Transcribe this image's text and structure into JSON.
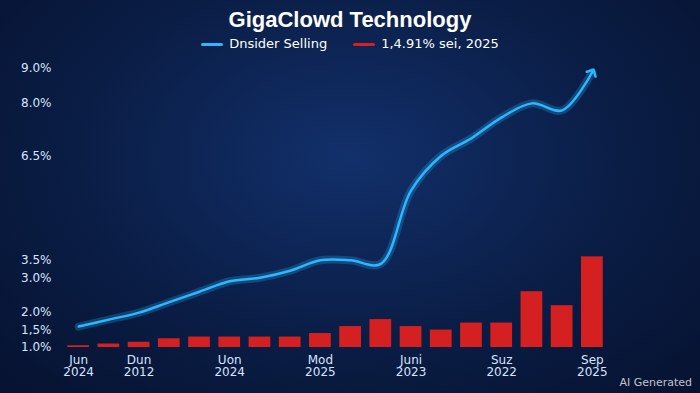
{
  "chart_data": {
    "type": "bar",
    "title": "GigaClowd Technology",
    "annotations": [
      "AI Generated"
    ],
    "categories": [
      "Jun\n2024",
      null,
      "Dun\n2012",
      null,
      null,
      "Uon\n2024",
      null,
      null,
      "Mod\n2025",
      null,
      null,
      "Juni\n2023",
      null,
      null,
      "Suz\n2022",
      null,
      null,
      "Sep\n2025"
    ],
    "series": [
      {
        "name": "Dnsider Selling",
        "type": "line",
        "color": "#2bb8ff",
        "marker": "arrow",
        "values": [
          1.6,
          1.8,
          2.0,
          2.3,
          2.6,
          2.9,
          3.0,
          3.2,
          3.5,
          3.5,
          3.4,
          5.5,
          6.5,
          7.0,
          7.6,
          8.0,
          7.8,
          8.9
        ]
      },
      {
        "name": "1,4.91% sei, 2025",
        "type": "bar",
        "color": "#d42020",
        "values": [
          1.05,
          1.1,
          1.15,
          1.25,
          1.3,
          1.3,
          1.3,
          1.3,
          1.4,
          1.6,
          1.8,
          1.6,
          1.5,
          1.7,
          1.7,
          2.6,
          2.2,
          3.6
        ]
      }
    ],
    "ylim": [
      1.0,
      9.0
    ],
    "yticks": [
      {
        "value": 1.0,
        "label": "1.0%"
      },
      {
        "value": 1.5,
        "label": "1,5%"
      },
      {
        "value": 2.0,
        "label": "2.0%"
      },
      {
        "value": 3.0,
        "label": "3.0%"
      },
      {
        "value": 3.5,
        "label": "3.5%"
      },
      {
        "value": 6.5,
        "label": "6.5%"
      },
      {
        "value": 8.0,
        "label": "8.0%"
      },
      {
        "value": 9.0,
        "label": "9.0%"
      }
    ],
    "legend": "top",
    "grid": false
  }
}
